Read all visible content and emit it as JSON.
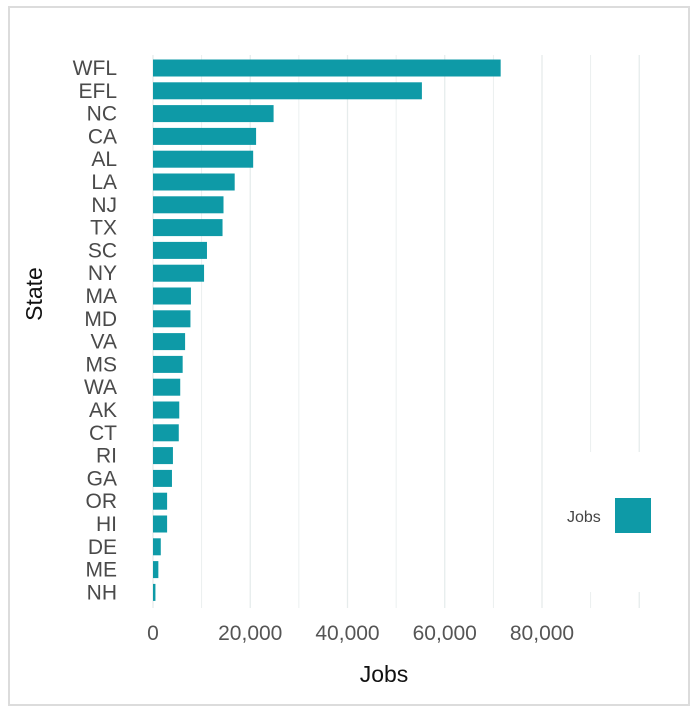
{
  "chart_data": {
    "type": "bar",
    "orientation": "horizontal",
    "categories": [
      "WFL",
      "EFL",
      "NC",
      "CA",
      "AL",
      "LA",
      "NJ",
      "TX",
      "SC",
      "NY",
      "MA",
      "MD",
      "VA",
      "MS",
      "WA",
      "AK",
      "CT",
      "RI",
      "GA",
      "OR",
      "HI",
      "DE",
      "ME",
      "NH"
    ],
    "values": [
      71500,
      55300,
      24800,
      21200,
      20600,
      16800,
      14500,
      14300,
      11100,
      10500,
      7800,
      7700,
      6600,
      6100,
      5600,
      5400,
      5300,
      4100,
      3900,
      2900,
      2900,
      1600,
      1100,
      500
    ],
    "xlabel": "Jobs",
    "ylabel": "State",
    "xlim": [
      0,
      100000
    ],
    "x_ticks": [
      0,
      20000,
      40000,
      60000,
      80000
    ],
    "x_tick_labels": [
      "0",
      "20,000",
      "40,000",
      "60,000",
      "80,000"
    ],
    "grid": "vertical",
    "legend": {
      "title": "Jobs",
      "placement": "bottom-right"
    },
    "colors": {
      "bar": "#0e9aa7",
      "grid": "#e6ecec"
    }
  }
}
